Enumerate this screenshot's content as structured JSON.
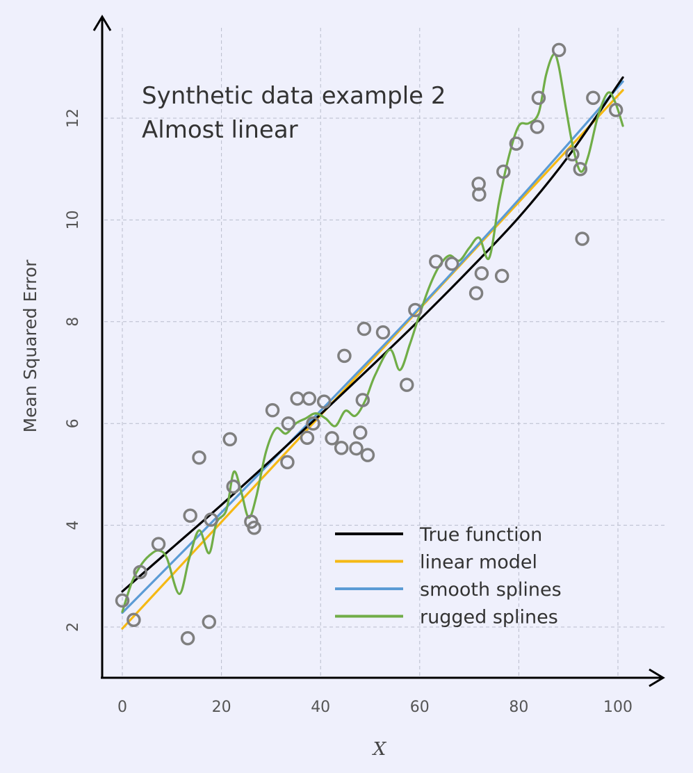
{
  "chart_data": {
    "type": "scatter",
    "title": "Synthetic data example 2",
    "subtitle": "Almost linear",
    "xlabel": "X",
    "ylabel": "Mean Squared Error",
    "xlim": [
      -4,
      108
    ],
    "ylim": [
      1.0,
      13.6
    ],
    "x_ticks": [
      0,
      20,
      40,
      60,
      80,
      100
    ],
    "y_ticks": [
      2,
      4,
      6,
      8,
      10,
      12
    ],
    "grid": true,
    "legend_position": "bottom-right",
    "points": {
      "color": "#7f7f7f",
      "x": [
        0,
        2.3,
        3.6,
        7.3,
        13.2,
        13.7,
        15.5,
        17.5,
        17.9,
        21.7,
        22.4,
        26.0,
        26.6,
        30.3,
        33.3,
        33.5,
        35.3,
        37.3,
        37.7,
        38.5,
        40.7,
        42.3,
        44.2,
        44.8,
        47.2,
        48.0,
        48.5,
        48.8,
        49.5,
        52.6,
        57.4,
        59.1,
        63.3,
        66.5,
        71.4,
        71.9,
        72.0,
        72.5,
        76.6,
        76.9,
        79.5,
        83.7,
        84.0,
        88.1,
        90.8,
        92.4,
        92.8,
        95.0,
        99.6
      ],
      "y": [
        2.52,
        2.14,
        3.08,
        3.63,
        1.78,
        4.19,
        5.33,
        2.1,
        4.11,
        5.69,
        4.76,
        4.07,
        3.95,
        6.26,
        5.24,
        6.0,
        6.49,
        5.72,
        6.49,
        6.0,
        6.43,
        5.71,
        5.52,
        7.33,
        5.51,
        5.82,
        6.46,
        7.86,
        5.38,
        7.79,
        6.76,
        8.23,
        9.18,
        9.14,
        8.56,
        10.71,
        10.5,
        8.95,
        8.9,
        10.95,
        11.5,
        11.83,
        12.4,
        13.34,
        11.29,
        11.0,
        9.63,
        12.4,
        12.16
      ]
    },
    "series": [
      {
        "name": "True function",
        "color": "#000000",
        "x": [
          0,
          10,
          20,
          30,
          40,
          50,
          60,
          70,
          80,
          90,
          101
        ],
        "y": [
          2.7,
          3.55,
          4.4,
          5.28,
          6.18,
          7.1,
          8.04,
          9.02,
          10.05,
          11.25,
          12.8
        ]
      },
      {
        "name": "linear model",
        "color": "#f5b914",
        "x": [
          0,
          101
        ],
        "y": [
          1.97,
          12.55
        ]
      },
      {
        "name": "smooth splines",
        "color": "#5b9bd5",
        "x": [
          0,
          20,
          40,
          60,
          80,
          101
        ],
        "y": [
          2.28,
          4.25,
          6.25,
          8.28,
          10.4,
          12.72
        ]
      },
      {
        "name": "rugged splines",
        "color": "#70ad47",
        "x": [
          0,
          2,
          4,
          6,
          7.5,
          9,
          11.5,
          13.5,
          15.5,
          17.5,
          19,
          21,
          22.5,
          24,
          25.5,
          27,
          29,
          31,
          33,
          35,
          37,
          39,
          41,
          43,
          45,
          47,
          49,
          51,
          54,
          56,
          58,
          60,
          62,
          64,
          66,
          68,
          70,
          72,
          74,
          76,
          78,
          80,
          82,
          84,
          85.5,
          87,
          88,
          89.5,
          91,
          92.5,
          94,
          96,
          98,
          99.5,
          101
        ],
        "y": [
          2.3,
          2.9,
          3.25,
          3.45,
          3.5,
          3.35,
          2.65,
          3.35,
          3.9,
          3.45,
          4.05,
          4.3,
          5.05,
          4.65,
          4.15,
          4.55,
          5.45,
          5.9,
          5.8,
          6.0,
          6.1,
          6.2,
          6.1,
          5.95,
          6.25,
          6.15,
          6.45,
          6.95,
          7.45,
          7.05,
          7.55,
          8.15,
          8.7,
          9.1,
          9.3,
          9.2,
          9.45,
          9.65,
          9.25,
          10.35,
          11.25,
          11.85,
          11.9,
          12.1,
          12.85,
          13.25,
          13.05,
          12.2,
          11.4,
          10.95,
          11.25,
          12.05,
          12.5,
          12.3,
          11.85
        ]
      }
    ]
  }
}
